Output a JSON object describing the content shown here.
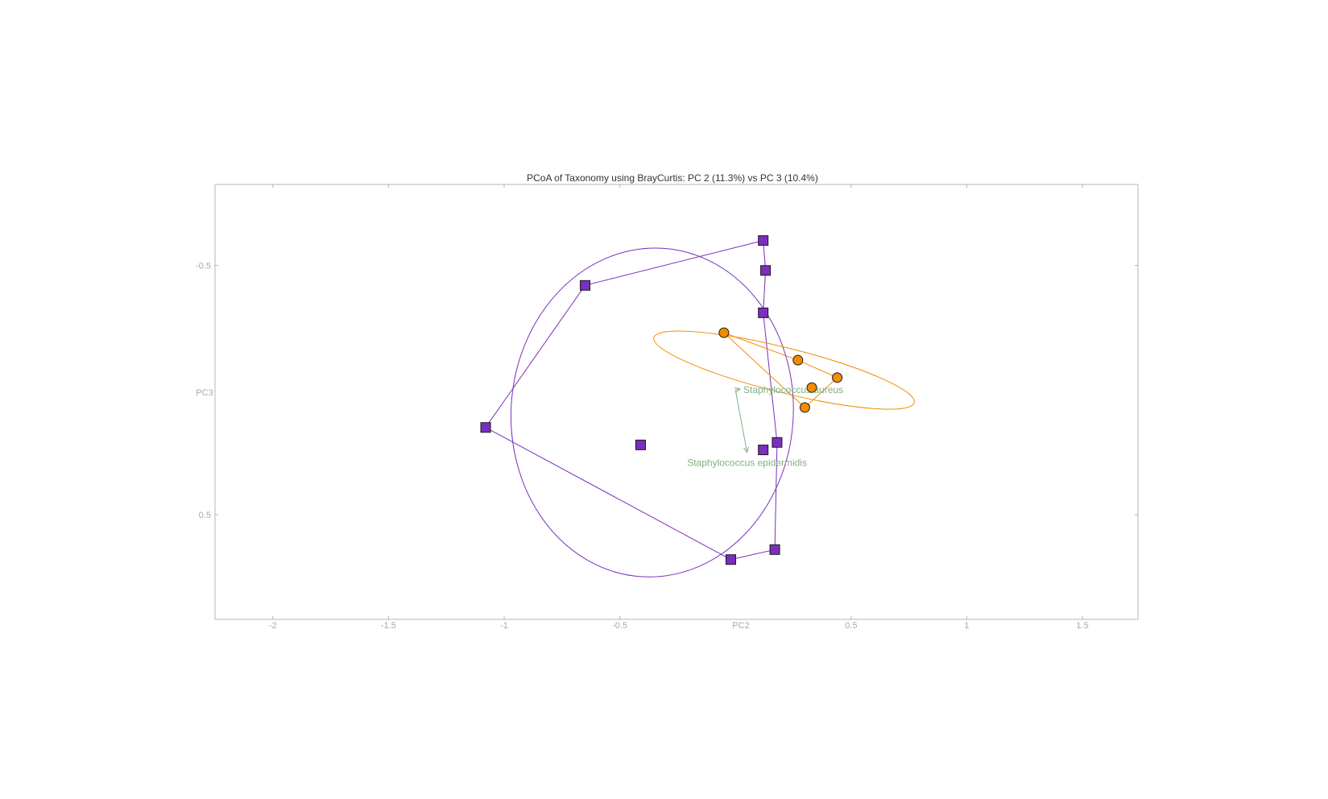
{
  "chart_data": {
    "type": "scatter",
    "title": "PCoA of Taxonomy using BrayCurtis: PC 2 (11.3%) vs PC 3 (10.4%)",
    "xlabel": "PC2",
    "ylabel": "PC3",
    "xlim": [
      -2.25,
      1.74
    ],
    "ylim": [
      -0.825,
      0.92
    ],
    "y_inverted": true,
    "x_ticks": [
      -2,
      -1.5,
      -1,
      -0.5,
      0.5,
      1,
      1.5
    ],
    "y_ticks": [
      -0.5,
      0.5
    ],
    "grid": false,
    "series": [
      {
        "marker": "square",
        "color": "#7b2fbe",
        "edge_color": "#1a1a1a",
        "points": [
          {
            "x": 0.12,
            "y": -0.6
          },
          {
            "x": 0.13,
            "y": -0.48
          },
          {
            "x": -0.65,
            "y": -0.42
          },
          {
            "x": 0.12,
            "y": -0.31
          },
          {
            "x": -1.08,
            "y": 0.15
          },
          {
            "x": -0.41,
            "y": 0.22
          },
          {
            "x": 0.12,
            "y": 0.24
          },
          {
            "x": 0.18,
            "y": 0.21
          },
          {
            "x": 0.17,
            "y": 0.64
          },
          {
            "x": -0.02,
            "y": 0.68
          }
        ],
        "hull": [
          {
            "x": 0.12,
            "y": -0.6
          },
          {
            "x": 0.13,
            "y": -0.48
          },
          {
            "x": 0.12,
            "y": -0.31
          },
          {
            "x": 0.18,
            "y": 0.21
          },
          {
            "x": 0.17,
            "y": 0.64
          },
          {
            "x": -0.02,
            "y": 0.68
          },
          {
            "x": -1.08,
            "y": 0.15
          },
          {
            "x": -0.65,
            "y": -0.42
          }
        ],
        "ellipse": {
          "cx": -0.36,
          "cy": 0.09,
          "rx": 0.61,
          "ry": 0.66,
          "angle_deg": 4
        }
      },
      {
        "marker": "circle",
        "color": "#f28c00",
        "edge_color": "#1a1a1a",
        "points": [
          {
            "x": -0.05,
            "y": -0.23
          },
          {
            "x": 0.27,
            "y": -0.12
          },
          {
            "x": 0.44,
            "y": -0.05
          },
          {
            "x": 0.33,
            "y": -0.01
          },
          {
            "x": 0.3,
            "y": 0.07
          }
        ],
        "hull": [
          {
            "x": -0.05,
            "y": -0.23
          },
          {
            "x": 0.27,
            "y": -0.12
          },
          {
            "x": 0.44,
            "y": -0.05
          },
          {
            "x": 0.3,
            "y": 0.07
          }
        ],
        "ellipse": {
          "cx": 0.21,
          "cy": -0.08,
          "rx": 0.58,
          "ry": 0.09,
          "angle_deg": 14
        }
      }
    ],
    "biplot": {
      "color": "#7fb07f",
      "origin": {
        "x": 0.0,
        "y": 0.0
      },
      "arrows": [
        {
          "label": "Staphylococcus aureus",
          "x": 0.02,
          "y": -0.005
        },
        {
          "label": "Staphylococcus epidermidis",
          "x": 0.05,
          "y": 0.25
        }
      ]
    }
  }
}
